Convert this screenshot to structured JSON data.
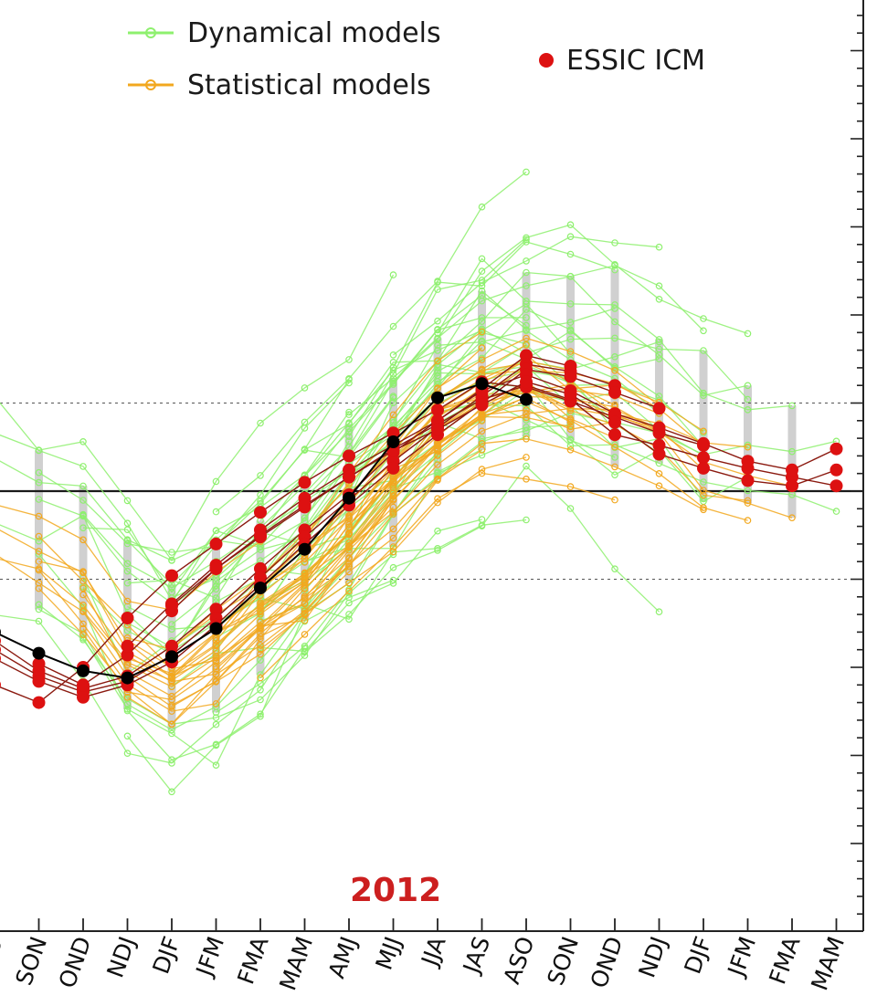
{
  "chart_data": {
    "type": "line",
    "year_label": "2012",
    "categories": [
      "ASO",
      "SON",
      "OND",
      "NDJ",
      "DJF",
      "JFM",
      "FMA",
      "MAM",
      "AMJ",
      "MJJ",
      "JJA",
      "JAS",
      "ASO",
      "SON",
      "OND",
      "NDJ",
      "DJF",
      "JFM",
      "FMA",
      "MAM"
    ],
    "ylim": [
      -2.5,
      2.5
    ],
    "zero_line": 0,
    "reference_lines": [
      -0.5,
      0.5
    ],
    "legend": {
      "dynamical": "Dynamical models",
      "statistical": "Statistical models",
      "essic": "ESSIC ICM"
    },
    "colors": {
      "dynamical": "#8ef06e",
      "statistical": "#f2a81f",
      "essic": "#dd1111",
      "observed": "#000000",
      "spread": "#c0c0c0",
      "reference": "#555555"
    },
    "observed": {
      "name": "Observed",
      "start": 0,
      "values": [
        -0.8,
        -0.92,
        -1.02,
        -1.06,
        -0.94,
        -0.78,
        -0.55,
        -0.33,
        -0.04,
        0.28,
        0.53,
        0.61,
        0.52
      ]
    },
    "essic_runs": [
      {
        "start": 0,
        "values": [
          -0.85,
          -1.02,
          -1.12,
          -1.05,
          -0.88,
          -0.67,
          -0.44,
          -0.22,
          -0.02,
          0.22,
          0.4,
          0.58,
          0.77,
          0.71
        ]
      },
      {
        "start": 0,
        "values": [
          -0.9,
          -1.05,
          -1.14,
          -1.08,
          -0.93,
          -0.72,
          -0.49,
          -0.26,
          -0.05,
          0.17,
          0.36,
          0.54,
          0.72,
          0.68,
          0.6
        ]
      },
      {
        "start": 0,
        "values": [
          -0.95,
          -1.08,
          -1.17,
          -1.1,
          -0.97,
          -0.76,
          -0.53,
          -0.3,
          -0.08,
          0.13,
          0.32,
          0.5,
          0.69,
          0.65,
          0.56,
          0.47
        ]
      },
      {
        "start": 0,
        "values": [
          -1.1,
          -1.2,
          -1.0,
          -0.72,
          -0.48,
          -0.3,
          -0.12,
          0.05,
          0.2,
          0.33,
          0.46,
          0.62,
          0.59,
          0.51,
          0.42,
          0.33,
          0.26
        ]
      },
      {
        "start": 1,
        "values": [
          -0.98,
          -1.1,
          -0.93,
          -0.68,
          -0.44,
          -0.26,
          -0.09,
          0.08,
          0.24,
          0.38,
          0.52,
          0.6,
          0.52,
          0.32,
          0.26,
          0.19,
          0.13,
          0.08,
          0.03
        ]
      },
      {
        "start": 3,
        "values": [
          -0.88,
          -0.64,
          -0.42,
          -0.22,
          -0.04,
          0.12,
          0.26,
          0.4,
          0.57,
          0.66,
          0.57,
          0.44,
          0.36,
          0.27,
          0.17,
          0.12,
          0.24
        ]
      },
      {
        "start": 4,
        "values": [
          -0.65,
          -0.44,
          -0.25,
          -0.08,
          0.08,
          0.23,
          0.35,
          0.49,
          0.62,
          0.55,
          0.39,
          0.21,
          0.13,
          0.06,
          0.03,
          0.12
        ]
      }
    ]
  }
}
